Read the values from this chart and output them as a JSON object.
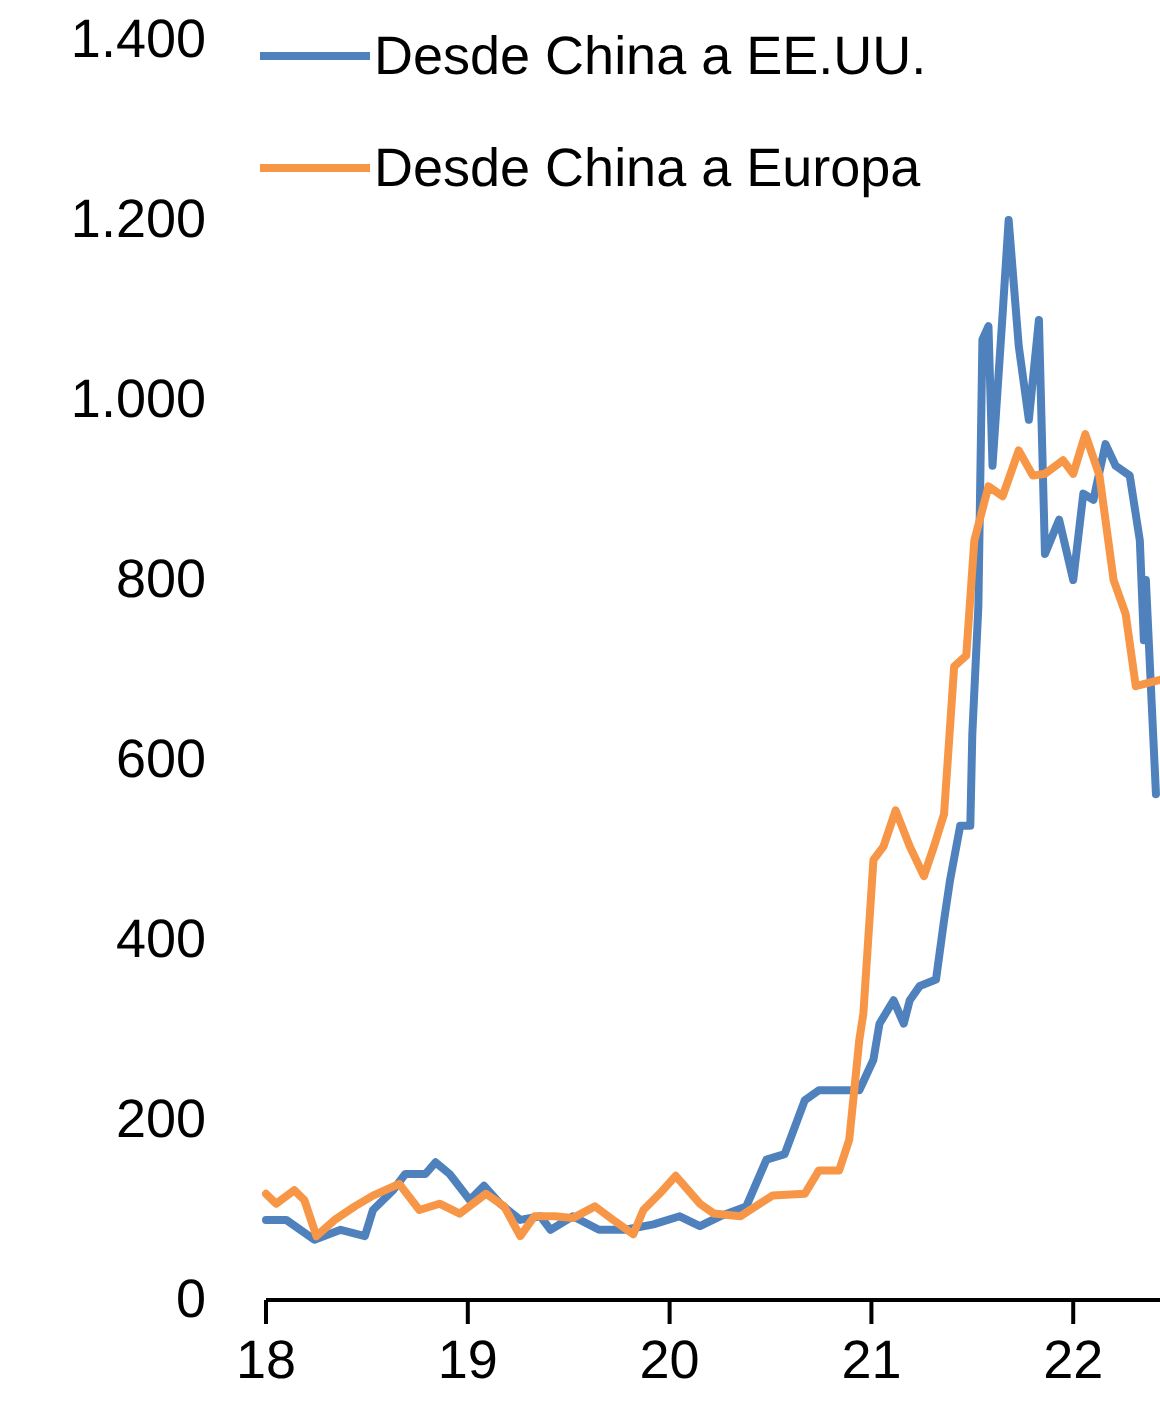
{
  "chart_data": {
    "type": "line",
    "xlim": [
      18,
      22.43
    ],
    "xticks": [
      18,
      19,
      20,
      21,
      22
    ],
    "ylim": [
      0,
      1400
    ],
    "yticks": [
      0,
      200,
      400,
      600,
      800,
      {
        "value": 1000,
        "label": "1.000"
      },
      {
        "value": 1200,
        "label": "1.200"
      },
      {
        "value": 1400,
        "label": "1.400"
      }
    ],
    "grid": false,
    "legend": "top",
    "marker": "none",
    "line_style": "solid",
    "series": [
      {
        "name": "Desde China a EE.UU.",
        "color": "#4f81bd",
        "x": [
          18.0,
          18.1,
          18.24,
          18.37,
          18.49,
          18.53,
          18.63,
          18.69,
          18.79,
          18.84,
          18.91,
          19.01,
          19.08,
          19.16,
          19.26,
          19.36,
          19.41,
          19.52,
          19.65,
          19.78,
          19.92,
          20.05,
          20.15,
          20.25,
          20.38,
          20.48,
          20.57,
          20.67,
          20.74,
          20.94,
          21.01,
          21.04,
          21.11,
          21.16,
          21.19,
          21.24,
          21.32,
          21.36,
          21.39,
          21.44,
          21.49,
          21.5,
          21.53,
          21.55,
          21.58,
          21.6,
          21.65,
          21.68,
          21.73,
          21.78,
          21.83,
          21.86,
          21.93,
          22.0,
          22.05,
          22.1,
          22.16,
          22.21,
          22.28,
          22.33,
          22.35,
          22.36,
          22.41
        ],
        "values": [
          89,
          89,
          67,
          78,
          71,
          100,
          122,
          140,
          140,
          153,
          140,
          111,
          127,
          107,
          89,
          93,
          78,
          93,
          78,
          78,
          84,
          93,
          82,
          93,
          104,
          156,
          162,
          222,
          233,
          233,
          267,
          307,
          333,
          307,
          333,
          349,
          356,
          422,
          467,
          527,
          527,
          629,
          771,
          1067,
          1082,
          927,
          1095,
          1200,
          1060,
          978,
          1089,
          829,
          867,
          800,
          896,
          889,
          951,
          927,
          916,
          844,
          733,
          800,
          562
        ]
      },
      {
        "name": "Desde China a Europa",
        "color": "#f79646",
        "x": [
          18.0,
          18.05,
          18.14,
          18.19,
          18.25,
          18.34,
          18.44,
          18.53,
          18.66,
          18.76,
          18.86,
          18.96,
          19.09,
          19.18,
          19.26,
          19.33,
          19.43,
          19.52,
          19.63,
          19.72,
          19.82,
          19.87,
          19.95,
          20.03,
          20.15,
          20.22,
          20.35,
          20.51,
          20.67,
          20.74,
          20.84,
          20.89,
          20.94,
          20.96,
          21.01,
          21.06,
          21.12,
          21.19,
          21.26,
          21.31,
          21.36,
          21.41,
          21.47,
          21.51,
          21.58,
          21.65,
          21.73,
          21.8,
          21.86,
          21.95,
          22.0,
          22.06,
          22.13,
          22.2,
          22.26,
          22.31,
          22.43
        ],
        "values": [
          118,
          107,
          122,
          111,
          71,
          89,
          104,
          116,
          129,
          100,
          107,
          96,
          118,
          104,
          71,
          93,
          93,
          91,
          104,
          89,
          73,
          100,
          118,
          138,
          107,
          96,
          93,
          116,
          118,
          144,
          144,
          178,
          289,
          318,
          489,
          504,
          544,
          504,
          471,
          504,
          540,
          704,
          716,
          844,
          904,
          893,
          944,
          916,
          918,
          933,
          918,
          962,
          916,
          800,
          762,
          682,
          689
        ]
      }
    ]
  }
}
